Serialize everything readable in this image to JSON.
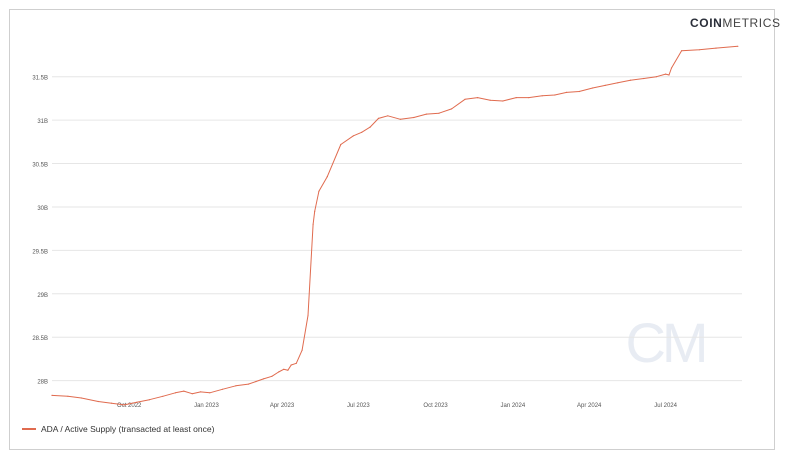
{
  "brand": {
    "bold": "COIN",
    "light": "METRICS",
    "watermark": "CM"
  },
  "colors": {
    "series": "#e06b4f",
    "grid": "#e6e6e6",
    "watermark": "#e8ecf3"
  },
  "chart_data": {
    "type": "line",
    "title": "",
    "xlabel": "",
    "ylabel": "",
    "grid": true,
    "legend_position": "bottom-left",
    "ylim": [
      27.8,
      31.9
    ],
    "y_ticks": [
      {
        "value": 28.0,
        "label": "28B"
      },
      {
        "value": 28.5,
        "label": "28.5B"
      },
      {
        "value": 29.0,
        "label": "29B"
      },
      {
        "value": 29.5,
        "label": "29.5B"
      },
      {
        "value": 30.0,
        "label": "30B"
      },
      {
        "value": 30.5,
        "label": "30.5B"
      },
      {
        "value": 31.0,
        "label": "31B"
      },
      {
        "value": 31.5,
        "label": "31.5B"
      }
    ],
    "x_ticks": [
      {
        "date": "2022-10-01",
        "label": "Oct 2022"
      },
      {
        "date": "2023-01-01",
        "label": "Jan 2023"
      },
      {
        "date": "2023-04-01",
        "label": "Apr 2023"
      },
      {
        "date": "2023-07-01",
        "label": "Jul 2023"
      },
      {
        "date": "2023-10-01",
        "label": "Oct 2023"
      },
      {
        "date": "2024-01-01",
        "label": "Jan 2024"
      },
      {
        "date": "2024-04-01",
        "label": "Apr 2024"
      },
      {
        "date": "2024-07-01",
        "label": "Jul 2024"
      }
    ],
    "xlim": [
      "2022-07-01",
      "2024-09-30"
    ],
    "series": [
      {
        "name": "ADA / Active Supply (transacted at least once)",
        "x": [
          "2022-07-01",
          "2022-07-20",
          "2022-08-05",
          "2022-08-25",
          "2022-09-10",
          "2022-09-25",
          "2022-10-10",
          "2022-10-25",
          "2022-11-10",
          "2022-11-25",
          "2022-12-05",
          "2022-12-15",
          "2022-12-25",
          "2023-01-05",
          "2023-01-20",
          "2023-02-05",
          "2023-02-20",
          "2023-03-01",
          "2023-03-10",
          "2023-03-20",
          "2023-03-28",
          "2023-04-03",
          "2023-04-08",
          "2023-04-12",
          "2023-04-18",
          "2023-04-25",
          "2023-05-02",
          "2023-05-08",
          "2023-05-10",
          "2023-05-15",
          "2023-05-25",
          "2023-06-10",
          "2023-06-25",
          "2023-07-05",
          "2023-07-15",
          "2023-07-25",
          "2023-08-05",
          "2023-08-20",
          "2023-09-05",
          "2023-09-20",
          "2023-10-05",
          "2023-10-20",
          "2023-11-05",
          "2023-11-20",
          "2023-12-05",
          "2023-12-20",
          "2024-01-05",
          "2024-01-20",
          "2024-02-05",
          "2024-02-20",
          "2024-03-05",
          "2024-03-20",
          "2024-04-05",
          "2024-04-20",
          "2024-05-05",
          "2024-05-20",
          "2024-06-05",
          "2024-06-20",
          "2024-07-01",
          "2024-07-05",
          "2024-07-08",
          "2024-07-20",
          "2024-08-10",
          "2024-08-30",
          "2024-09-25"
        ],
        "y": [
          27.83,
          27.82,
          27.8,
          27.76,
          27.74,
          27.72,
          27.75,
          27.78,
          27.82,
          27.86,
          27.88,
          27.85,
          27.87,
          27.86,
          27.9,
          27.94,
          27.96,
          27.99,
          28.02,
          28.05,
          28.1,
          28.13,
          28.12,
          28.18,
          28.2,
          28.35,
          28.75,
          29.8,
          29.95,
          30.18,
          30.35,
          30.72,
          30.82,
          30.86,
          30.92,
          31.02,
          31.05,
          31.01,
          31.03,
          31.07,
          31.08,
          31.13,
          31.24,
          31.26,
          31.23,
          31.22,
          31.26,
          31.26,
          31.28,
          31.29,
          31.32,
          31.33,
          31.37,
          31.4,
          31.43,
          31.46,
          31.48,
          31.5,
          31.53,
          31.52,
          31.6,
          31.8,
          31.81,
          31.83,
          31.85
        ]
      }
    ]
  }
}
